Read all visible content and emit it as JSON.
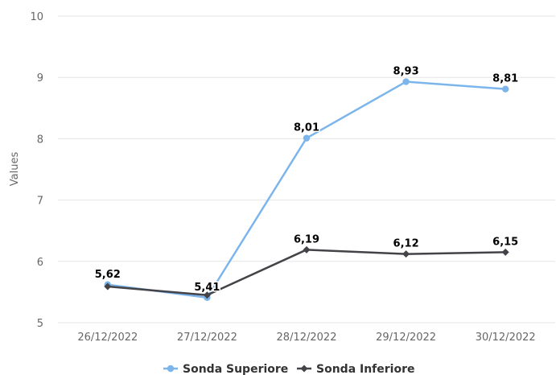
{
  "chart_data": {
    "type": "line",
    "title": "",
    "xlabel": "",
    "ylabel": "Values",
    "ylim": [
      5,
      10
    ],
    "yticks": [
      5,
      6,
      7,
      8,
      9,
      10
    ],
    "categories": [
      "26/12/2022",
      "27/12/2022",
      "28/12/2022",
      "29/12/2022",
      "30/12/2022"
    ],
    "series": [
      {
        "name": "Sonda Superiore",
        "color": "#7cb5ec",
        "marker": "circle",
        "values": [
          5.62,
          5.41,
          8.01,
          8.93,
          8.81
        ],
        "labels": [
          "5,62",
          "5,41",
          "8,01",
          "8,93",
          "8,81"
        ]
      },
      {
        "name": "Sonda Inferiore",
        "color": "#434348",
        "marker": "diamond",
        "values": [
          5.59,
          5.45,
          6.19,
          6.12,
          6.15
        ],
        "labels": [
          "",
          "",
          "6,19",
          "6,12",
          "6,15"
        ]
      }
    ],
    "grid": true,
    "legend": "bottom-center"
  }
}
